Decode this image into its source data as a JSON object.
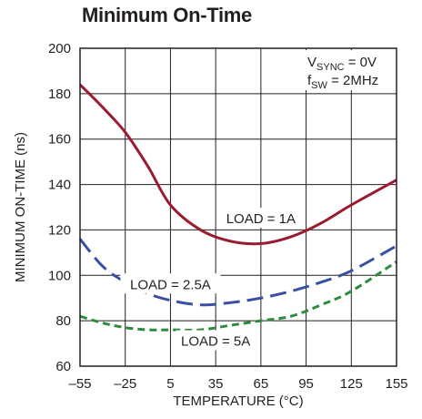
{
  "chart_data": {
    "type": "line",
    "title": "Minimum On-Time",
    "xlabel": "TEMPERATURE (°C)",
    "ylabel": "MINIMUM ON-TIME (ns)",
    "xlim": [
      -55,
      155
    ],
    "ylim": [
      60,
      200
    ],
    "x_ticks": [
      -55,
      -25,
      5,
      35,
      65,
      95,
      125,
      155
    ],
    "x_tick_labels": [
      "–55",
      "–25",
      "5",
      "35",
      "65",
      "95",
      "125",
      "155"
    ],
    "y_ticks": [
      60,
      80,
      100,
      120,
      140,
      160,
      180,
      200
    ],
    "y_tick_labels": [
      "60",
      "80",
      "100",
      "120",
      "140",
      "160",
      "180",
      "200"
    ],
    "grid": true,
    "annotation": {
      "v_main": "V",
      "v_sub": "SYNC",
      "v_rest": " = 0V",
      "f_main": "f",
      "f_sub": "SW",
      "f_rest": " = 2MHz"
    },
    "series": [
      {
        "name": "LOAD = 1A",
        "color": "#9b1b30",
        "style": "solid",
        "x": [
          -55,
          -40,
          -25,
          -10,
          5,
          25,
          45,
          65,
          85,
          105,
          125,
          155
        ],
        "values": [
          184,
          174,
          163,
          148,
          131,
          120,
          115,
          114,
          117,
          123,
          131,
          142
        ]
      },
      {
        "name": "LOAD = 2.5A",
        "color": "#3a4fa3",
        "style": "longdash",
        "x": [
          -55,
          -40,
          -25,
          -10,
          5,
          25,
          45,
          65,
          85,
          105,
          125,
          155
        ],
        "values": [
          116,
          104,
          97,
          92,
          89,
          87,
          88,
          90,
          93,
          97,
          102,
          113
        ]
      },
      {
        "name": "LOAD = 5A",
        "color": "#2e8b3e",
        "style": "shortdash",
        "x": [
          -55,
          -40,
          -25,
          -10,
          5,
          25,
          45,
          65,
          85,
          105,
          125,
          155
        ],
        "values": [
          82,
          79,
          77,
          76,
          76,
          76,
          78,
          80,
          82,
          87,
          93,
          106
        ]
      }
    ]
  }
}
